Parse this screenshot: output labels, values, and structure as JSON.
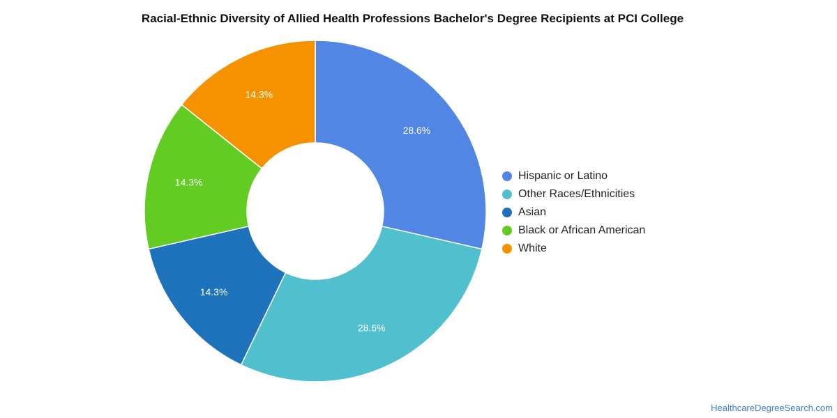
{
  "chart_data": {
    "type": "pie",
    "title": "Racial-Ethnic Diversity of Allied Health Professions Bachelor's Degree Recipients at PCI College",
    "slices": [
      {
        "label": "Hispanic or Latino",
        "value": 28.6,
        "display": "28.6%",
        "color": "#5286e5"
      },
      {
        "label": "Other Races/Ethnicities",
        "value": 28.6,
        "display": "28.6%",
        "color": "#50c0ce"
      },
      {
        "label": "Asian",
        "value": 14.3,
        "display": "14.3%",
        "color": "#1e71bb"
      },
      {
        "label": "Black or African American",
        "value": 14.3,
        "display": "14.3%",
        "color": "#62cc23"
      },
      {
        "label": "White",
        "value": 14.3,
        "display": "14.3%",
        "color": "#f69200"
      }
    ],
    "legend_position": "right"
  },
  "footer": {
    "source": "HealthcareDegreeSearch.com"
  }
}
